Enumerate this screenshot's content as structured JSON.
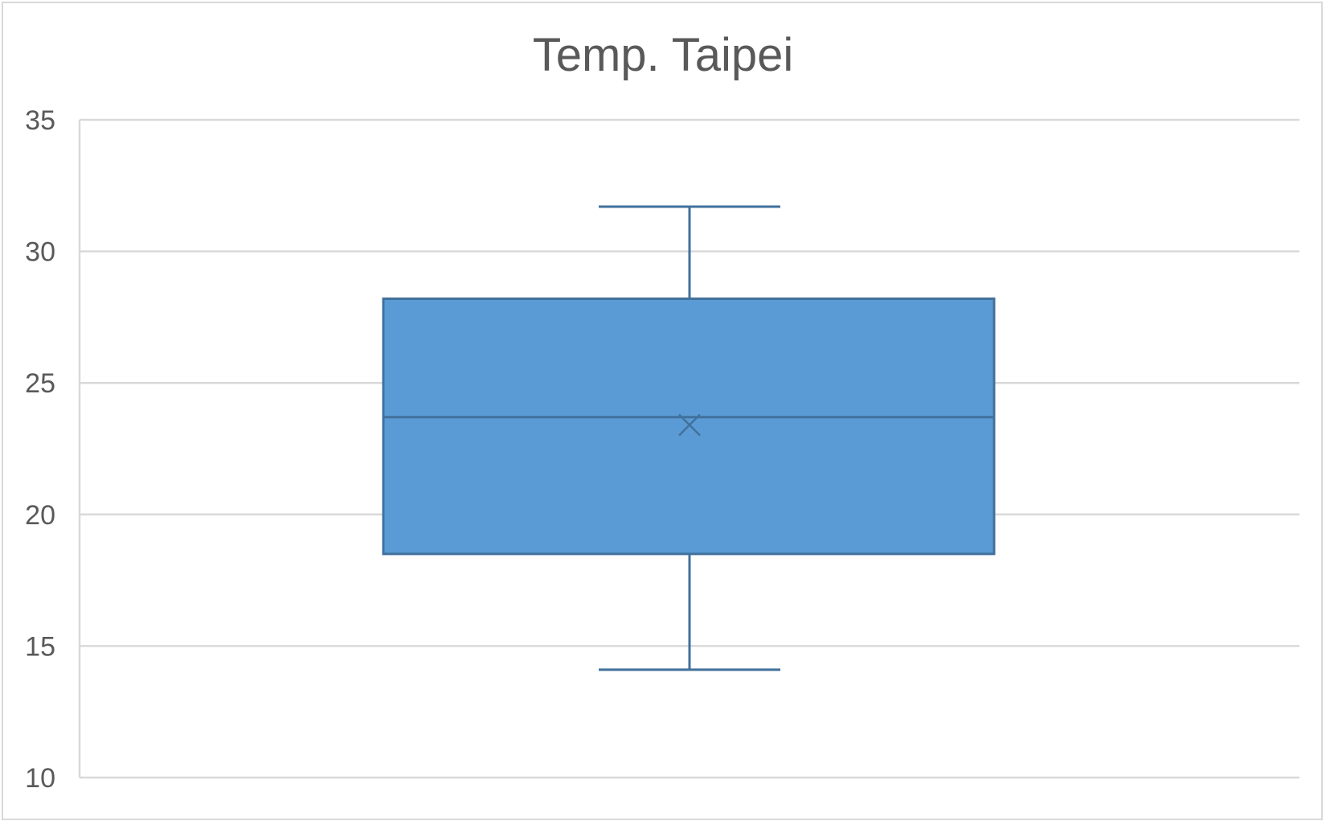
{
  "chart_data": {
    "type": "boxplot",
    "title": "Temp. Taipei",
    "xlabel": "",
    "ylabel": "",
    "ylim": [
      10,
      35
    ],
    "yticks": [
      "10",
      "15",
      "20",
      "25",
      "30",
      "35"
    ],
    "grid": true,
    "legend": "none",
    "series": [
      {
        "min": 14.1,
        "q1": 18.5,
        "median": 23.7,
        "mean": 23.4,
        "q3": 28.2,
        "max": 31.7
      }
    ],
    "colors": {
      "box_fill": "#5b9bd5",
      "box_stroke": "#41719c",
      "grid": "#d9d9d9",
      "text": "#595959"
    }
  }
}
